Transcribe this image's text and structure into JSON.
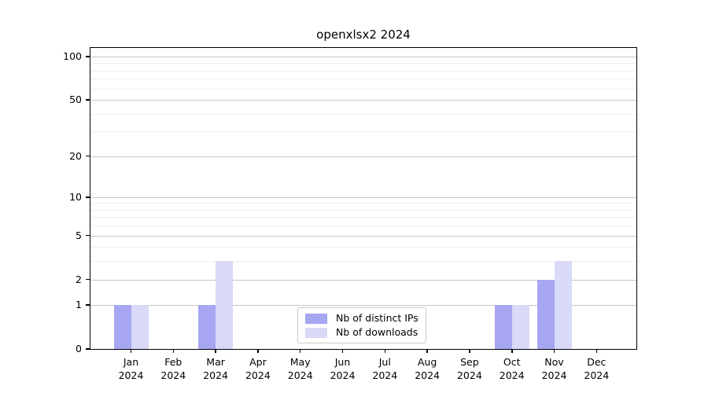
{
  "chart_data": {
    "type": "bar",
    "title": "openxlsx2 2024",
    "categories": [
      "Jan 2024",
      "Feb 2024",
      "Mar 2024",
      "Apr 2024",
      "May 2024",
      "Jun 2024",
      "Jul 2024",
      "Aug 2024",
      "Sep 2024",
      "Oct 2024",
      "Nov 2024",
      "Dec 2024"
    ],
    "series": [
      {
        "name": "Nb of distinct IPs",
        "color": "#a6a6f2",
        "values": [
          1,
          0,
          1,
          0,
          0,
          0,
          0,
          0,
          0,
          1,
          2,
          0
        ]
      },
      {
        "name": "Nb of downloads",
        "color": "#d9d9f8",
        "values": [
          1,
          0,
          3,
          0,
          0,
          0,
          0,
          0,
          0,
          1,
          3,
          0
        ]
      }
    ],
    "xlabel": "",
    "ylabel": "",
    "y_axis": {
      "scale": "log1p",
      "tick_values": [
        0,
        1,
        2,
        5,
        10,
        20,
        50,
        100
      ],
      "minor_values": [
        3,
        4,
        6,
        7,
        8,
        9,
        30,
        40,
        60,
        70,
        80,
        90
      ],
      "range": [
        0,
        115
      ]
    },
    "grid": "horizontal",
    "legend": {
      "position": "bottom-center",
      "entries": [
        "Nb of distinct IPs",
        "Nb of downloads"
      ]
    },
    "colors": {
      "grid_major": "#c6c6c6",
      "grid_minor": "#ededed",
      "axis": "#000000",
      "background": "#ffffff"
    }
  }
}
